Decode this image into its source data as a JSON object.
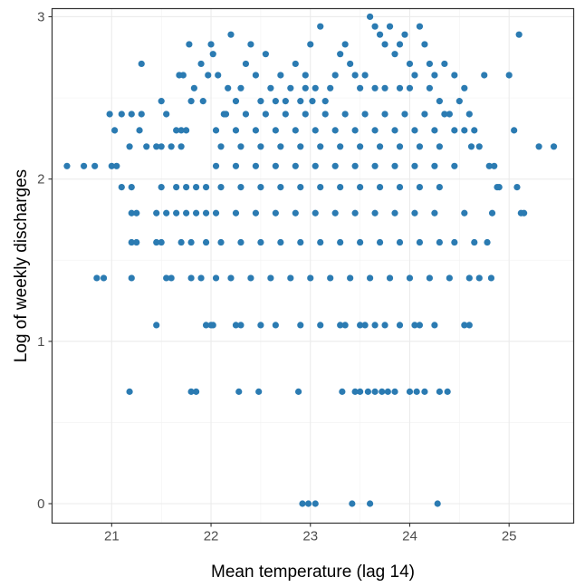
{
  "chart_data": {
    "type": "scatter",
    "xlabel": "Mean temperature (lag 14)",
    "ylabel": "Log of weekly discharges",
    "xlim": [
      20.4,
      25.65
    ],
    "ylim": [
      -0.12,
      3.05
    ],
    "xticks": [
      "21",
      "22",
      "23",
      "24",
      "25"
    ],
    "yticks": [
      "0",
      "1",
      "2",
      "3"
    ],
    "grid": true,
    "point_color": "#2b7bb2",
    "points": [
      [
        20.55,
        2.08
      ],
      [
        20.72,
        2.08
      ],
      [
        20.83,
        2.08
      ],
      [
        21.0,
        2.08
      ],
      [
        21.05,
        2.08
      ],
      [
        20.98,
        2.4
      ],
      [
        21.1,
        2.4
      ],
      [
        21.2,
        2.4
      ],
      [
        21.3,
        2.4
      ],
      [
        21.03,
        2.3
      ],
      [
        21.28,
        2.3
      ],
      [
        21.18,
        2.2
      ],
      [
        21.35,
        2.2
      ],
      [
        21.45,
        2.2
      ],
      [
        21.5,
        2.2
      ],
      [
        21.6,
        2.2
      ],
      [
        21.7,
        2.2
      ],
      [
        21.1,
        1.95
      ],
      [
        21.2,
        1.95
      ],
      [
        21.5,
        1.95
      ],
      [
        21.65,
        1.95
      ],
      [
        21.75,
        1.95
      ],
      [
        21.85,
        1.95
      ],
      [
        21.95,
        1.95
      ],
      [
        21.2,
        1.79
      ],
      [
        21.25,
        1.79
      ],
      [
        21.45,
        1.79
      ],
      [
        21.55,
        1.79
      ],
      [
        21.65,
        1.79
      ],
      [
        21.75,
        1.79
      ],
      [
        21.85,
        1.79
      ],
      [
        21.95,
        1.79
      ],
      [
        21.2,
        1.61
      ],
      [
        21.25,
        1.61
      ],
      [
        21.45,
        1.61
      ],
      [
        21.5,
        1.61
      ],
      [
        21.7,
        1.61
      ],
      [
        21.8,
        1.61
      ],
      [
        21.95,
        1.61
      ],
      [
        20.85,
        1.39
      ],
      [
        20.92,
        1.39
      ],
      [
        21.2,
        1.39
      ],
      [
        21.55,
        1.39
      ],
      [
        21.6,
        1.39
      ],
      [
        21.8,
        1.39
      ],
      [
        21.9,
        1.39
      ],
      [
        21.45,
        1.1
      ],
      [
        21.95,
        1.1
      ],
      [
        22.02,
        1.1
      ],
      [
        21.18,
        0.69
      ],
      [
        21.8,
        0.69
      ],
      [
        21.85,
        0.69
      ],
      [
        21.3,
        2.71
      ],
      [
        21.5,
        2.48
      ],
      [
        21.55,
        2.4
      ],
      [
        21.65,
        2.3
      ],
      [
        21.7,
        2.3
      ],
      [
        21.75,
        2.3
      ],
      [
        21.8,
        2.48
      ],
      [
        21.68,
        2.64
      ],
      [
        21.72,
        2.64
      ],
      [
        21.78,
        2.83
      ],
      [
        21.83,
        2.56
      ],
      [
        21.9,
        2.71
      ],
      [
        21.92,
        2.48
      ],
      [
        21.97,
        2.64
      ],
      [
        22.0,
        2.83
      ],
      [
        22.02,
        2.77
      ],
      [
        22.07,
        2.64
      ],
      [
        22.13,
        2.4
      ],
      [
        22.17,
        2.56
      ],
      [
        22.2,
        2.89
      ],
      [
        22.25,
        2.48
      ],
      [
        22.3,
        2.56
      ],
      [
        22.35,
        2.71
      ],
      [
        22.4,
        2.83
      ],
      [
        22.45,
        2.64
      ],
      [
        22.5,
        2.48
      ],
      [
        22.55,
        2.77
      ],
      [
        22.6,
        2.56
      ],
      [
        22.65,
        2.48
      ],
      [
        22.7,
        2.64
      ],
      [
        22.75,
        2.48
      ],
      [
        22.8,
        2.56
      ],
      [
        22.85,
        2.71
      ],
      [
        22.9,
        2.48
      ],
      [
        22.95,
        2.64
      ],
      [
        23.0,
        2.83
      ],
      [
        23.02,
        2.48
      ],
      [
        23.1,
        2.94
      ],
      [
        23.15,
        2.48
      ],
      [
        23.2,
        2.56
      ],
      [
        23.25,
        2.64
      ],
      [
        23.3,
        2.77
      ],
      [
        23.35,
        2.83
      ],
      [
        23.4,
        2.71
      ],
      [
        23.45,
        2.64
      ],
      [
        23.5,
        2.56
      ],
      [
        23.55,
        2.64
      ],
      [
        23.6,
        3.0
      ],
      [
        23.65,
        2.94
      ],
      [
        23.7,
        2.89
      ],
      [
        23.75,
        2.83
      ],
      [
        23.8,
        2.94
      ],
      [
        23.85,
        2.77
      ],
      [
        23.9,
        2.83
      ],
      [
        23.95,
        2.89
      ],
      [
        24.0,
        2.71
      ],
      [
        24.05,
        2.64
      ],
      [
        24.1,
        2.94
      ],
      [
        24.15,
        2.83
      ],
      [
        24.2,
        2.71
      ],
      [
        24.25,
        2.64
      ],
      [
        24.3,
        2.48
      ],
      [
        24.35,
        2.71
      ],
      [
        24.4,
        2.4
      ],
      [
        24.45,
        2.64
      ],
      [
        24.5,
        2.48
      ],
      [
        24.55,
        2.56
      ],
      [
        24.6,
        2.4
      ],
      [
        24.65,
        2.3
      ],
      [
        24.75,
        2.64
      ],
      [
        24.7,
        2.2
      ],
      [
        24.62,
        2.2
      ],
      [
        24.55,
        2.3
      ],
      [
        24.8,
        2.08
      ],
      [
        24.85,
        2.08
      ],
      [
        24.88,
        1.95
      ],
      [
        24.9,
        1.95
      ],
      [
        24.83,
        1.79
      ],
      [
        24.78,
        1.61
      ],
      [
        24.65,
        1.61
      ],
      [
        24.55,
        1.79
      ],
      [
        24.45,
        1.61
      ],
      [
        24.6,
        1.39
      ],
      [
        24.7,
        1.39
      ],
      [
        24.82,
        1.39
      ],
      [
        24.55,
        1.1
      ],
      [
        24.6,
        1.1
      ],
      [
        25.0,
        2.64
      ],
      [
        25.05,
        2.3
      ],
      [
        25.1,
        2.89
      ],
      [
        25.08,
        1.95
      ],
      [
        25.12,
        1.79
      ],
      [
        25.3,
        2.2
      ],
      [
        25.45,
        2.2
      ],
      [
        25.15,
        1.79
      ],
      [
        24.38,
        0.69
      ],
      [
        24.3,
        0.69
      ],
      [
        24.15,
        0.69
      ],
      [
        24.07,
        0.69
      ],
      [
        24.0,
        0.69
      ],
      [
        23.85,
        0.69
      ],
      [
        23.78,
        0.69
      ],
      [
        23.72,
        0.69
      ],
      [
        23.65,
        0.69
      ],
      [
        23.58,
        0.69
      ],
      [
        23.5,
        0.69
      ],
      [
        23.45,
        0.69
      ],
      [
        23.32,
        0.69
      ],
      [
        22.88,
        0.69
      ],
      [
        22.48,
        0.69
      ],
      [
        22.28,
        0.69
      ],
      [
        22.92,
        0.0
      ],
      [
        22.98,
        0.0
      ],
      [
        23.05,
        0.0
      ],
      [
        23.42,
        0.0
      ],
      [
        23.6,
        0.0
      ],
      [
        24.28,
        0.0
      ],
      [
        22.0,
        1.1
      ],
      [
        22.25,
        1.1
      ],
      [
        22.3,
        1.1
      ],
      [
        22.5,
        1.1
      ],
      [
        22.65,
        1.1
      ],
      [
        22.9,
        1.1
      ],
      [
        23.1,
        1.1
      ],
      [
        23.3,
        1.1
      ],
      [
        23.35,
        1.1
      ],
      [
        23.5,
        1.1
      ],
      [
        23.55,
        1.1
      ],
      [
        23.65,
        1.1
      ],
      [
        23.75,
        1.1
      ],
      [
        23.9,
        1.1
      ],
      [
        24.05,
        1.1
      ],
      [
        24.1,
        1.1
      ],
      [
        24.25,
        1.1
      ],
      [
        22.05,
        1.39
      ],
      [
        22.2,
        1.39
      ],
      [
        22.4,
        1.39
      ],
      [
        22.6,
        1.39
      ],
      [
        22.8,
        1.39
      ],
      [
        23.0,
        1.39
      ],
      [
        23.2,
        1.39
      ],
      [
        23.4,
        1.39
      ],
      [
        23.6,
        1.39
      ],
      [
        23.8,
        1.39
      ],
      [
        24.0,
        1.39
      ],
      [
        24.2,
        1.39
      ],
      [
        24.4,
        1.39
      ],
      [
        22.1,
        1.61
      ],
      [
        22.3,
        1.61
      ],
      [
        22.5,
        1.61
      ],
      [
        22.7,
        1.61
      ],
      [
        22.9,
        1.61
      ],
      [
        23.1,
        1.61
      ],
      [
        23.3,
        1.61
      ],
      [
        23.5,
        1.61
      ],
      [
        23.7,
        1.61
      ],
      [
        23.9,
        1.61
      ],
      [
        24.1,
        1.61
      ],
      [
        24.3,
        1.61
      ],
      [
        22.05,
        1.79
      ],
      [
        22.25,
        1.79
      ],
      [
        22.45,
        1.79
      ],
      [
        22.65,
        1.79
      ],
      [
        22.85,
        1.79
      ],
      [
        23.05,
        1.79
      ],
      [
        23.25,
        1.79
      ],
      [
        23.45,
        1.79
      ],
      [
        23.65,
        1.79
      ],
      [
        23.85,
        1.79
      ],
      [
        24.05,
        1.79
      ],
      [
        24.25,
        1.79
      ],
      [
        22.1,
        1.95
      ],
      [
        22.3,
        1.95
      ],
      [
        22.5,
        1.95
      ],
      [
        22.7,
        1.95
      ],
      [
        22.9,
        1.95
      ],
      [
        23.1,
        1.95
      ],
      [
        23.3,
        1.95
      ],
      [
        23.5,
        1.95
      ],
      [
        23.7,
        1.95
      ],
      [
        23.9,
        1.95
      ],
      [
        24.1,
        1.95
      ],
      [
        24.3,
        1.95
      ],
      [
        22.05,
        2.08
      ],
      [
        22.25,
        2.08
      ],
      [
        22.45,
        2.08
      ],
      [
        22.65,
        2.08
      ],
      [
        22.85,
        2.08
      ],
      [
        23.05,
        2.08
      ],
      [
        23.25,
        2.08
      ],
      [
        23.45,
        2.08
      ],
      [
        23.65,
        2.08
      ],
      [
        23.85,
        2.08
      ],
      [
        24.05,
        2.08
      ],
      [
        24.25,
        2.08
      ],
      [
        24.45,
        2.08
      ],
      [
        22.1,
        2.2
      ],
      [
        22.3,
        2.2
      ],
      [
        22.5,
        2.2
      ],
      [
        22.7,
        2.2
      ],
      [
        22.9,
        2.2
      ],
      [
        23.1,
        2.2
      ],
      [
        23.3,
        2.2
      ],
      [
        23.5,
        2.2
      ],
      [
        23.7,
        2.2
      ],
      [
        23.9,
        2.2
      ],
      [
        24.1,
        2.2
      ],
      [
        24.3,
        2.2
      ],
      [
        22.05,
        2.3
      ],
      [
        22.25,
        2.3
      ],
      [
        22.45,
        2.3
      ],
      [
        22.65,
        2.3
      ],
      [
        22.85,
        2.3
      ],
      [
        23.05,
        2.3
      ],
      [
        23.25,
        2.3
      ],
      [
        23.45,
        2.3
      ],
      [
        23.65,
        2.3
      ],
      [
        23.85,
        2.3
      ],
      [
        24.05,
        2.3
      ],
      [
        24.25,
        2.3
      ],
      [
        24.45,
        2.3
      ],
      [
        22.15,
        2.4
      ],
      [
        22.35,
        2.4
      ],
      [
        22.55,
        2.4
      ],
      [
        22.75,
        2.4
      ],
      [
        22.95,
        2.4
      ],
      [
        23.15,
        2.4
      ],
      [
        23.35,
        2.4
      ],
      [
        23.55,
        2.4
      ],
      [
        23.75,
        2.4
      ],
      [
        23.95,
        2.4
      ],
      [
        24.15,
        2.4
      ],
      [
        24.35,
        2.4
      ],
      [
        22.95,
        2.56
      ],
      [
        23.05,
        2.56
      ],
      [
        23.65,
        2.56
      ],
      [
        23.75,
        2.56
      ],
      [
        23.9,
        2.56
      ],
      [
        24.0,
        2.56
      ],
      [
        24.2,
        2.56
      ]
    ]
  }
}
